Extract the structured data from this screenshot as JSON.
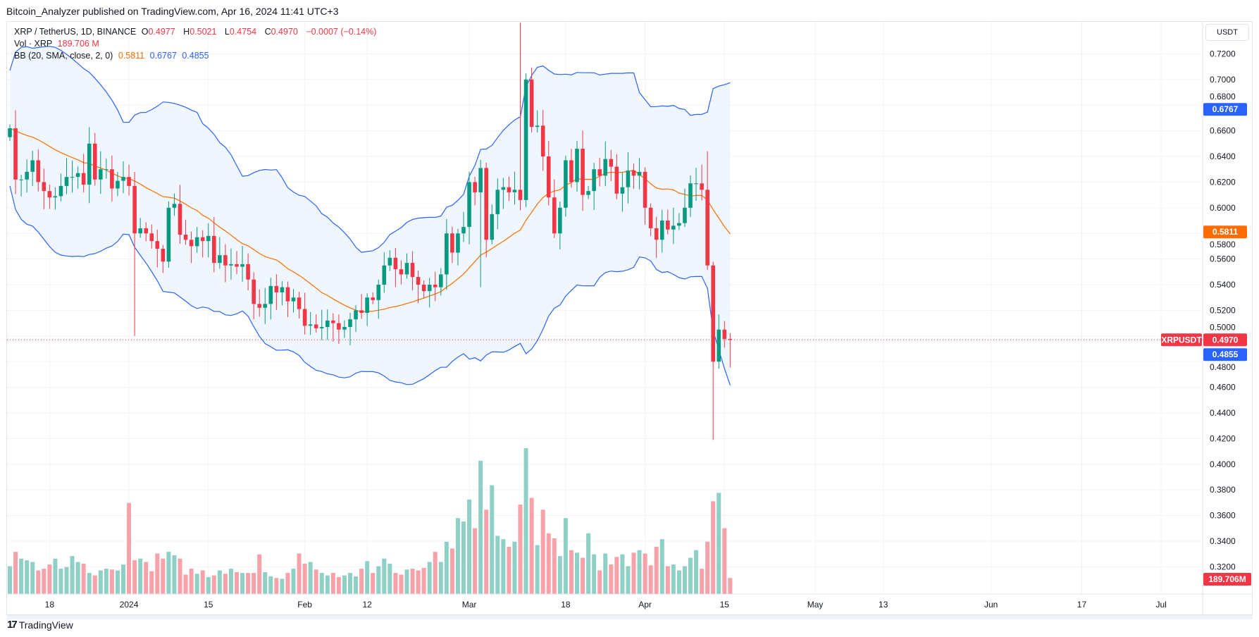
{
  "header": {
    "published": "Bitcoin_Analyzer published on TradingView.com, Apr 16, 2024 11:41 UTC+3"
  },
  "legend": {
    "symbol": "XRP / TetherUS, 1D, BINANCE",
    "o_label": "O",
    "o": "0.4977",
    "h_label": "H",
    "h": "0.5021",
    "l_label": "L",
    "l": "0.4754",
    "c_label": "C",
    "c": "0.4970",
    "change": "−0.0007 (−0.14%)",
    "vol_label": "Vol · XRP",
    "vol": "189.706 M",
    "bb_label": "BB (20, SMA, close, 2, 0)",
    "bb_basis": "0.5811",
    "bb_upper": "0.6767",
    "bb_lower": "0.4855"
  },
  "price_axis": {
    "currency": "USDT"
  },
  "badges": {
    "symbol": "XRPUSDT",
    "last": "0.4970",
    "bb_upper": "0.6767",
    "bb_basis": "0.5811",
    "bb_lower": "0.4855",
    "volume": "189.706M"
  },
  "footer": {
    "brand": "TradingView",
    "brand_icon": "tradingview-logo-icon"
  },
  "colors": {
    "up": "#089981",
    "down": "#f23645",
    "vol_up": "#8fd0c6",
    "vol_down": "#f7a1a8",
    "bb_band": "#2962ff",
    "bb_basis": "#ff6d00",
    "bb_fill": "#f0f6fd"
  },
  "chart_data": {
    "type": "candlestick",
    "symbol": "XRPUSDT",
    "interval": "1D",
    "start_date": "2023-12-11",
    "ylim": [
      0.3,
      0.74
    ],
    "y_ticks": [
      "0.3200",
      "0.3400",
      "0.3600",
      "0.3800",
      "0.4000",
      "0.4200",
      "0.4400",
      "0.4600",
      "0.4800",
      "0.5000",
      "0.5200",
      "0.5400",
      "0.5600",
      "0.5800",
      "0.6000",
      "0.6200",
      "0.6400",
      "0.6600",
      "0.6800",
      "0.7000",
      "0.7200"
    ],
    "x_ticks": [
      {
        "label": "18",
        "date": "2023-12-18"
      },
      {
        "label": "2024",
        "date": "2024-01-01"
      },
      {
        "label": "15",
        "date": "2024-01-15"
      },
      {
        "label": "Feb",
        "date": "2024-02-01"
      },
      {
        "label": "12",
        "date": "2024-02-12"
      },
      {
        "label": "Mar",
        "date": "2024-03-01"
      },
      {
        "label": "18",
        "date": "2024-03-18"
      },
      {
        "label": "Apr",
        "date": "2024-04-01"
      },
      {
        "label": "15",
        "date": "2024-04-15"
      },
      {
        "label": "May",
        "date": "2024-05-01"
      },
      {
        "label": "13",
        "date": "2024-05-13"
      },
      {
        "label": "Jun",
        "date": "2024-06-01"
      },
      {
        "label": "17",
        "date": "2024-06-17"
      },
      {
        "label": "Jul",
        "date": "2024-07-01"
      }
    ],
    "first_open": 0.655,
    "close": [
      0.662,
      0.622,
      0.622,
      0.628,
      0.637,
      0.62,
      0.613,
      0.608,
      0.609,
      0.617,
      0.624,
      0.624,
      0.627,
      0.618,
      0.65,
      0.622,
      0.63,
      0.63,
      0.615,
      0.621,
      0.624,
      0.617,
      0.58,
      0.584,
      0.58,
      0.574,
      0.568,
      0.558,
      0.6,
      0.603,
      0.579,
      0.575,
      0.57,
      0.577,
      0.574,
      0.578,
      0.557,
      0.563,
      0.555,
      0.556,
      0.554,
      0.556,
      0.544,
      0.525,
      0.522,
      0.525,
      0.539,
      0.534,
      0.538,
      0.527,
      0.53,
      0.521,
      0.508,
      0.509,
      0.506,
      0.507,
      0.512,
      0.51,
      0.505,
      0.507,
      0.513,
      0.52,
      0.518,
      0.53,
      0.528,
      0.54,
      0.555,
      0.561,
      0.552,
      0.548,
      0.557,
      0.546,
      0.54,
      0.535,
      0.54,
      0.538,
      0.548,
      0.58,
      0.565,
      0.58,
      0.585,
      0.62,
      0.612,
      0.631,
      0.575,
      0.595,
      0.614,
      0.616,
      0.612,
      0.614,
      0.606,
      0.7,
      0.663,
      0.664,
      0.64,
      0.608,
      0.58,
      0.6,
      0.637,
      0.62,
      0.646,
      0.61,
      0.613,
      0.63,
      0.625,
      0.638,
      0.632,
      0.611,
      0.616,
      0.629,
      0.625,
      0.628,
      0.6,
      0.584,
      0.575,
      0.59,
      0.583,
      0.586,
      0.588,
      0.6,
      0.619,
      0.619,
      0.614,
      0.555,
      0.48,
      0.505,
      0.4977,
      0.497
    ],
    "wick_overrides": {
      "22": {
        "low": 0.5
      },
      "90": {
        "high": 0.7442,
        "low": 0.598
      },
      "83": {
        "low": 0.538
      },
      "123": {
        "high": 0.644
      },
      "124": {
        "low": 0.419
      },
      "127": {
        "open": 0.4977,
        "high": 0.5021,
        "low": 0.4754,
        "close": 0.497
      }
    },
    "volume_unit": "M",
    "volume": [
      330,
      500,
      420,
      400,
      380,
      280,
      300,
      350,
      420,
      300,
      320,
      450,
      380,
      360,
      250,
      220,
      280,
      300,
      290,
      280,
      350,
      1080,
      400,
      420,
      380,
      270,
      480,
      420,
      500,
      460,
      420,
      230,
      300,
      240,
      280,
      200,
      220,
      280,
      240,
      300,
      260,
      250,
      250,
      250,
      470,
      260,
      210,
      190,
      180,
      250,
      300,
      480,
      360,
      380,
      290,
      250,
      220,
      250,
      200,
      220,
      250,
      210,
      300,
      390,
      250,
      330,
      420,
      360,
      250,
      230,
      290,
      300,
      280,
      310,
      380,
      500,
      380,
      620,
      540,
      900,
      860,
      1120,
      780,
      1580,
      1000,
      1290,
      690,
      650,
      560,
      620,
      1060,
      1730,
      1140,
      580,
      1000,
      720,
      660,
      450,
      900,
      520,
      490,
      430,
      720,
      470,
      280,
      480,
      350,
      440,
      470,
      330,
      490,
      520,
      480,
      340,
      560,
      650,
      330,
      350,
      280,
      330,
      430,
      520,
      300,
      620,
      1100,
      1200,
      780,
      189.706
    ],
    "indicator": {
      "name": "BB",
      "length": 20,
      "basis": 0.5811,
      "upper": 0.6767,
      "lower": 0.4855
    }
  }
}
